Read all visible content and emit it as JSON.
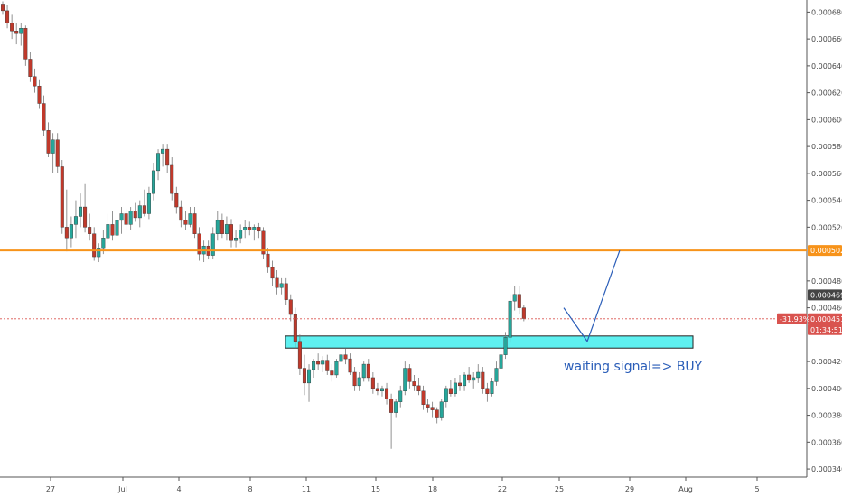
{
  "chart_data": {
    "type": "candlestick",
    "title": "",
    "xlabel": "",
    "ylabel": "",
    "ylim": [
      0.000334,
      0.000689
    ],
    "y_ticks": [
      "0.0006800",
      "0.0006600",
      "0.0006400",
      "0.0006200",
      "0.0006000",
      "0.0005800",
      "0.0005600",
      "0.0005400",
      "0.0005200",
      "0.0004800",
      "0.0004600",
      "0.0004200",
      "0.0004000",
      "0.0003800",
      "0.0003600",
      "0.0003400"
    ],
    "x_ticks": [
      "27",
      "Jul",
      "4",
      "8",
      "11",
      "15",
      "18",
      "22",
      "25",
      "29",
      "Aug",
      "5"
    ],
    "grid": false,
    "colors": {
      "up": "#26a69a",
      "down": "#c0392b",
      "resistance": "#f7931a",
      "zone": "#5ef0f0",
      "zone_border": "#222222",
      "projection": "#2a5db8",
      "last_price": "#d9534f",
      "dark_badge": "#444444"
    },
    "resistance_level": {
      "value": 0.0005027,
      "label": "0.0005027"
    },
    "last_price": {
      "value": 0.0004518,
      "label": "0.0004518",
      "change_label": "-31.93%",
      "countdown": "01:34:51"
    },
    "marker_price": {
      "value": 0.0004696,
      "label": "0.0004696"
    },
    "support_zone": {
      "low": 0.00043,
      "high": 0.000439
    },
    "annotation": "waiting signal=> BUY",
    "ohlc": [
      [
        0.000686,
        0.000688,
        0.000678,
        0.000681
      ],
      [
        0.000681,
        0.000685,
        0.000668,
        0.000672
      ],
      [
        0.000672,
        0.000678,
        0.00066,
        0.000666
      ],
      [
        0.000666,
        0.000672,
        0.000656,
        0.000664
      ],
      [
        0.000664,
        0.000672,
        0.000655,
        0.000668
      ],
      [
        0.000668,
        0.00067,
        0.00064,
        0.000645
      ],
      [
        0.000645,
        0.00065,
        0.000628,
        0.000632
      ],
      [
        0.000632,
        0.000638,
        0.00062,
        0.000625
      ],
      [
        0.000625,
        0.00063,
        0.000608,
        0.000612
      ],
      [
        0.000612,
        0.000618,
        0.000588,
        0.000592
      ],
      [
        0.000592,
        0.000598,
        0.000572,
        0.000575
      ],
      [
        0.000575,
        0.00059,
        0.00056,
        0.000585
      ],
      [
        0.000585,
        0.00059,
        0.00056,
        0.000565
      ],
      [
        0.000565,
        0.00057,
        0.000515,
        0.00052
      ],
      [
        0.00052,
        0.000548,
        0.000502,
        0.000512
      ],
      [
        0.000512,
        0.000528,
        0.000505,
        0.000522
      ],
      [
        0.000522,
        0.00054,
        0.000512,
        0.000528
      ],
      [
        0.000528,
        0.000545,
        0.00052,
        0.000535
      ],
      [
        0.000535,
        0.000552,
        0.000516,
        0.00052
      ],
      [
        0.00052,
        0.00053,
        0.00051,
        0.000515
      ],
      [
        0.000515,
        0.00052,
        0.000495,
        0.000498
      ],
      [
        0.000498,
        0.000508,
        0.000494,
        0.000504
      ],
      [
        0.000504,
        0.000518,
        0.0005,
        0.000512
      ],
      [
        0.000512,
        0.00053,
        0.000508,
        0.000522
      ],
      [
        0.000522,
        0.000532,
        0.00051,
        0.000514
      ],
      [
        0.000514,
        0.00053,
        0.00051,
        0.000525
      ],
      [
        0.000525,
        0.000535,
        0.000515,
        0.00053
      ],
      [
        0.00053,
        0.000534,
        0.000518,
        0.000522
      ],
      [
        0.000522,
        0.000535,
        0.000518,
        0.000532
      ],
      [
        0.000532,
        0.000538,
        0.000524,
        0.000527
      ],
      [
        0.000527,
        0.00054,
        0.00052,
        0.000536
      ],
      [
        0.000536,
        0.000548,
        0.000528,
        0.00053
      ],
      [
        0.00053,
        0.00055,
        0.000526,
        0.000545
      ],
      [
        0.000545,
        0.000568,
        0.00054,
        0.000562
      ],
      [
        0.000562,
        0.000578,
        0.000555,
        0.000575
      ],
      [
        0.000575,
        0.000582,
        0.000565,
        0.000578
      ],
      [
        0.000578,
        0.000582,
        0.00056,
        0.000566
      ],
      [
        0.000566,
        0.000572,
        0.00054,
        0.000545
      ],
      [
        0.000545,
        0.00055,
        0.00053,
        0.000535
      ],
      [
        0.000535,
        0.00054,
        0.00052,
        0.000525
      ],
      [
        0.000525,
        0.000532,
        0.000518,
        0.000522
      ],
      [
        0.000522,
        0.000535,
        0.00052,
        0.00053
      ],
      [
        0.00053,
        0.000535,
        0.000512,
        0.000515
      ],
      [
        0.000515,
        0.00052,
        0.000495,
        0.0005
      ],
      [
        0.0005,
        0.00051,
        0.000494,
        0.000506
      ],
      [
        0.000506,
        0.00051,
        0.000496,
        0.000499
      ],
      [
        0.000499,
        0.00052,
        0.000496,
        0.000515
      ],
      [
        0.000515,
        0.000532,
        0.00051,
        0.000525
      ],
      [
        0.000525,
        0.00053,
        0.000512,
        0.000515
      ],
      [
        0.000515,
        0.000528,
        0.00051,
        0.000522
      ],
      [
        0.000522,
        0.000526,
        0.000505,
        0.00051
      ],
      [
        0.00051,
        0.000518,
        0.000505,
        0.000512
      ],
      [
        0.000512,
        0.000522,
        0.000508,
        0.000518
      ],
      [
        0.000518,
        0.000525,
        0.000512,
        0.00052
      ],
      [
        0.00052,
        0.000524,
        0.000514,
        0.000518
      ],
      [
        0.000518,
        0.000522,
        0.00051,
        0.00052
      ],
      [
        0.00052,
        0.000523,
        0.000512,
        0.000517
      ],
      [
        0.000517,
        0.00052,
        0.000496,
        0.0005
      ],
      [
        0.0005,
        0.000504,
        0.000486,
        0.00049
      ],
      [
        0.00049,
        0.000495,
        0.000476,
        0.000482
      ],
      [
        0.000482,
        0.000488,
        0.00047,
        0.000475
      ],
      [
        0.000475,
        0.000482,
        0.00047,
        0.000478
      ],
      [
        0.000478,
        0.000482,
        0.000462,
        0.000466
      ],
      [
        0.000466,
        0.00047,
        0.00045,
        0.000455
      ],
      [
        0.000455,
        0.00046,
        0.00043,
        0.000435
      ],
      [
        0.000435,
        0.00044,
        0.00041,
        0.000415
      ],
      [
        0.000415,
        0.000425,
        0.000395,
        0.000404
      ],
      [
        0.000404,
        0.000418,
        0.00039,
        0.000414
      ],
      [
        0.000414,
        0.000422,
        0.000408,
        0.00042
      ],
      [
        0.00042,
        0.000426,
        0.000414,
        0.000418
      ],
      [
        0.000418,
        0.000424,
        0.000412,
        0.000421
      ],
      [
        0.000421,
        0.000425,
        0.00041,
        0.000413
      ],
      [
        0.000413,
        0.000418,
        0.000405,
        0.00041
      ],
      [
        0.00041,
        0.000422,
        0.000408,
        0.00042
      ],
      [
        0.00042,
        0.000428,
        0.000415,
        0.000425
      ],
      [
        0.000425,
        0.00043,
        0.000418,
        0.000422
      ],
      [
        0.000422,
        0.000426,
        0.00041,
        0.000412
      ],
      [
        0.000412,
        0.000416,
        0.000398,
        0.000402
      ],
      [
        0.000402,
        0.000412,
        0.000398,
        0.000408
      ],
      [
        0.000408,
        0.00042,
        0.000405,
        0.000418
      ],
      [
        0.000418,
        0.000422,
        0.000405,
        0.000408
      ],
      [
        0.000408,
        0.000412,
        0.000396,
        0.0004
      ],
      [
        0.0004,
        0.000404,
        0.000395,
        0.000398
      ],
      [
        0.000398,
        0.000402,
        0.000394,
        0.0004
      ],
      [
        0.0004,
        0.000404,
        0.000388,
        0.000392
      ],
      [
        0.000392,
        0.000396,
        0.000355,
        0.000382
      ],
      [
        0.000382,
        0.000392,
        0.000378,
        0.00039
      ],
      [
        0.00039,
        0.000402,
        0.000386,
        0.000398
      ],
      [
        0.000398,
        0.00042,
        0.000395,
        0.000415
      ],
      [
        0.000415,
        0.000418,
        0.0004,
        0.000405
      ],
      [
        0.000405,
        0.00041,
        0.000398,
        0.000402
      ],
      [
        0.000402,
        0.000408,
        0.000395,
        0.000398
      ],
      [
        0.000398,
        0.000402,
        0.000384,
        0.000388
      ],
      [
        0.000388,
        0.000392,
        0.000382,
        0.000386
      ],
      [
        0.000386,
        0.00039,
        0.000378,
        0.000384
      ],
      [
        0.000384,
        0.000386,
        0.000374,
        0.000378
      ],
      [
        0.000378,
        0.000392,
        0.000376,
        0.00039
      ],
      [
        0.00039,
        0.000402,
        0.000386,
        0.0004
      ],
      [
        0.0004,
        0.000406,
        0.000394,
        0.000396
      ],
      [
        0.000396,
        0.000408,
        0.000394,
        0.000404
      ],
      [
        0.000404,
        0.00041,
        0.000398,
        0.000402
      ],
      [
        0.000402,
        0.000412,
        0.000398,
        0.00041
      ],
      [
        0.00041,
        0.000416,
        0.000404,
        0.000406
      ],
      [
        0.000406,
        0.000412,
        0.0004,
        0.000408
      ],
      [
        0.000408,
        0.000418,
        0.000404,
        0.000412
      ],
      [
        0.000412,
        0.000416,
        0.000396,
        0.0004
      ],
      [
        0.0004,
        0.000404,
        0.00039,
        0.000396
      ],
      [
        0.000396,
        0.000408,
        0.000394,
        0.000405
      ],
      [
        0.000405,
        0.00042,
        0.000402,
        0.000415
      ],
      [
        0.000415,
        0.000428,
        0.000412,
        0.000425
      ],
      [
        0.000425,
        0.000442,
        0.000422,
        0.000438
      ],
      [
        0.000438,
        0.00047,
        0.000434,
        0.000465
      ],
      [
        0.000465,
        0.000476,
        0.000458,
        0.00047
      ],
      [
        0.00047,
        0.000476,
        0.000455,
        0.00046
      ],
      [
        0.00046,
        0.000462,
        0.00045,
        0.000452
      ]
    ]
  }
}
